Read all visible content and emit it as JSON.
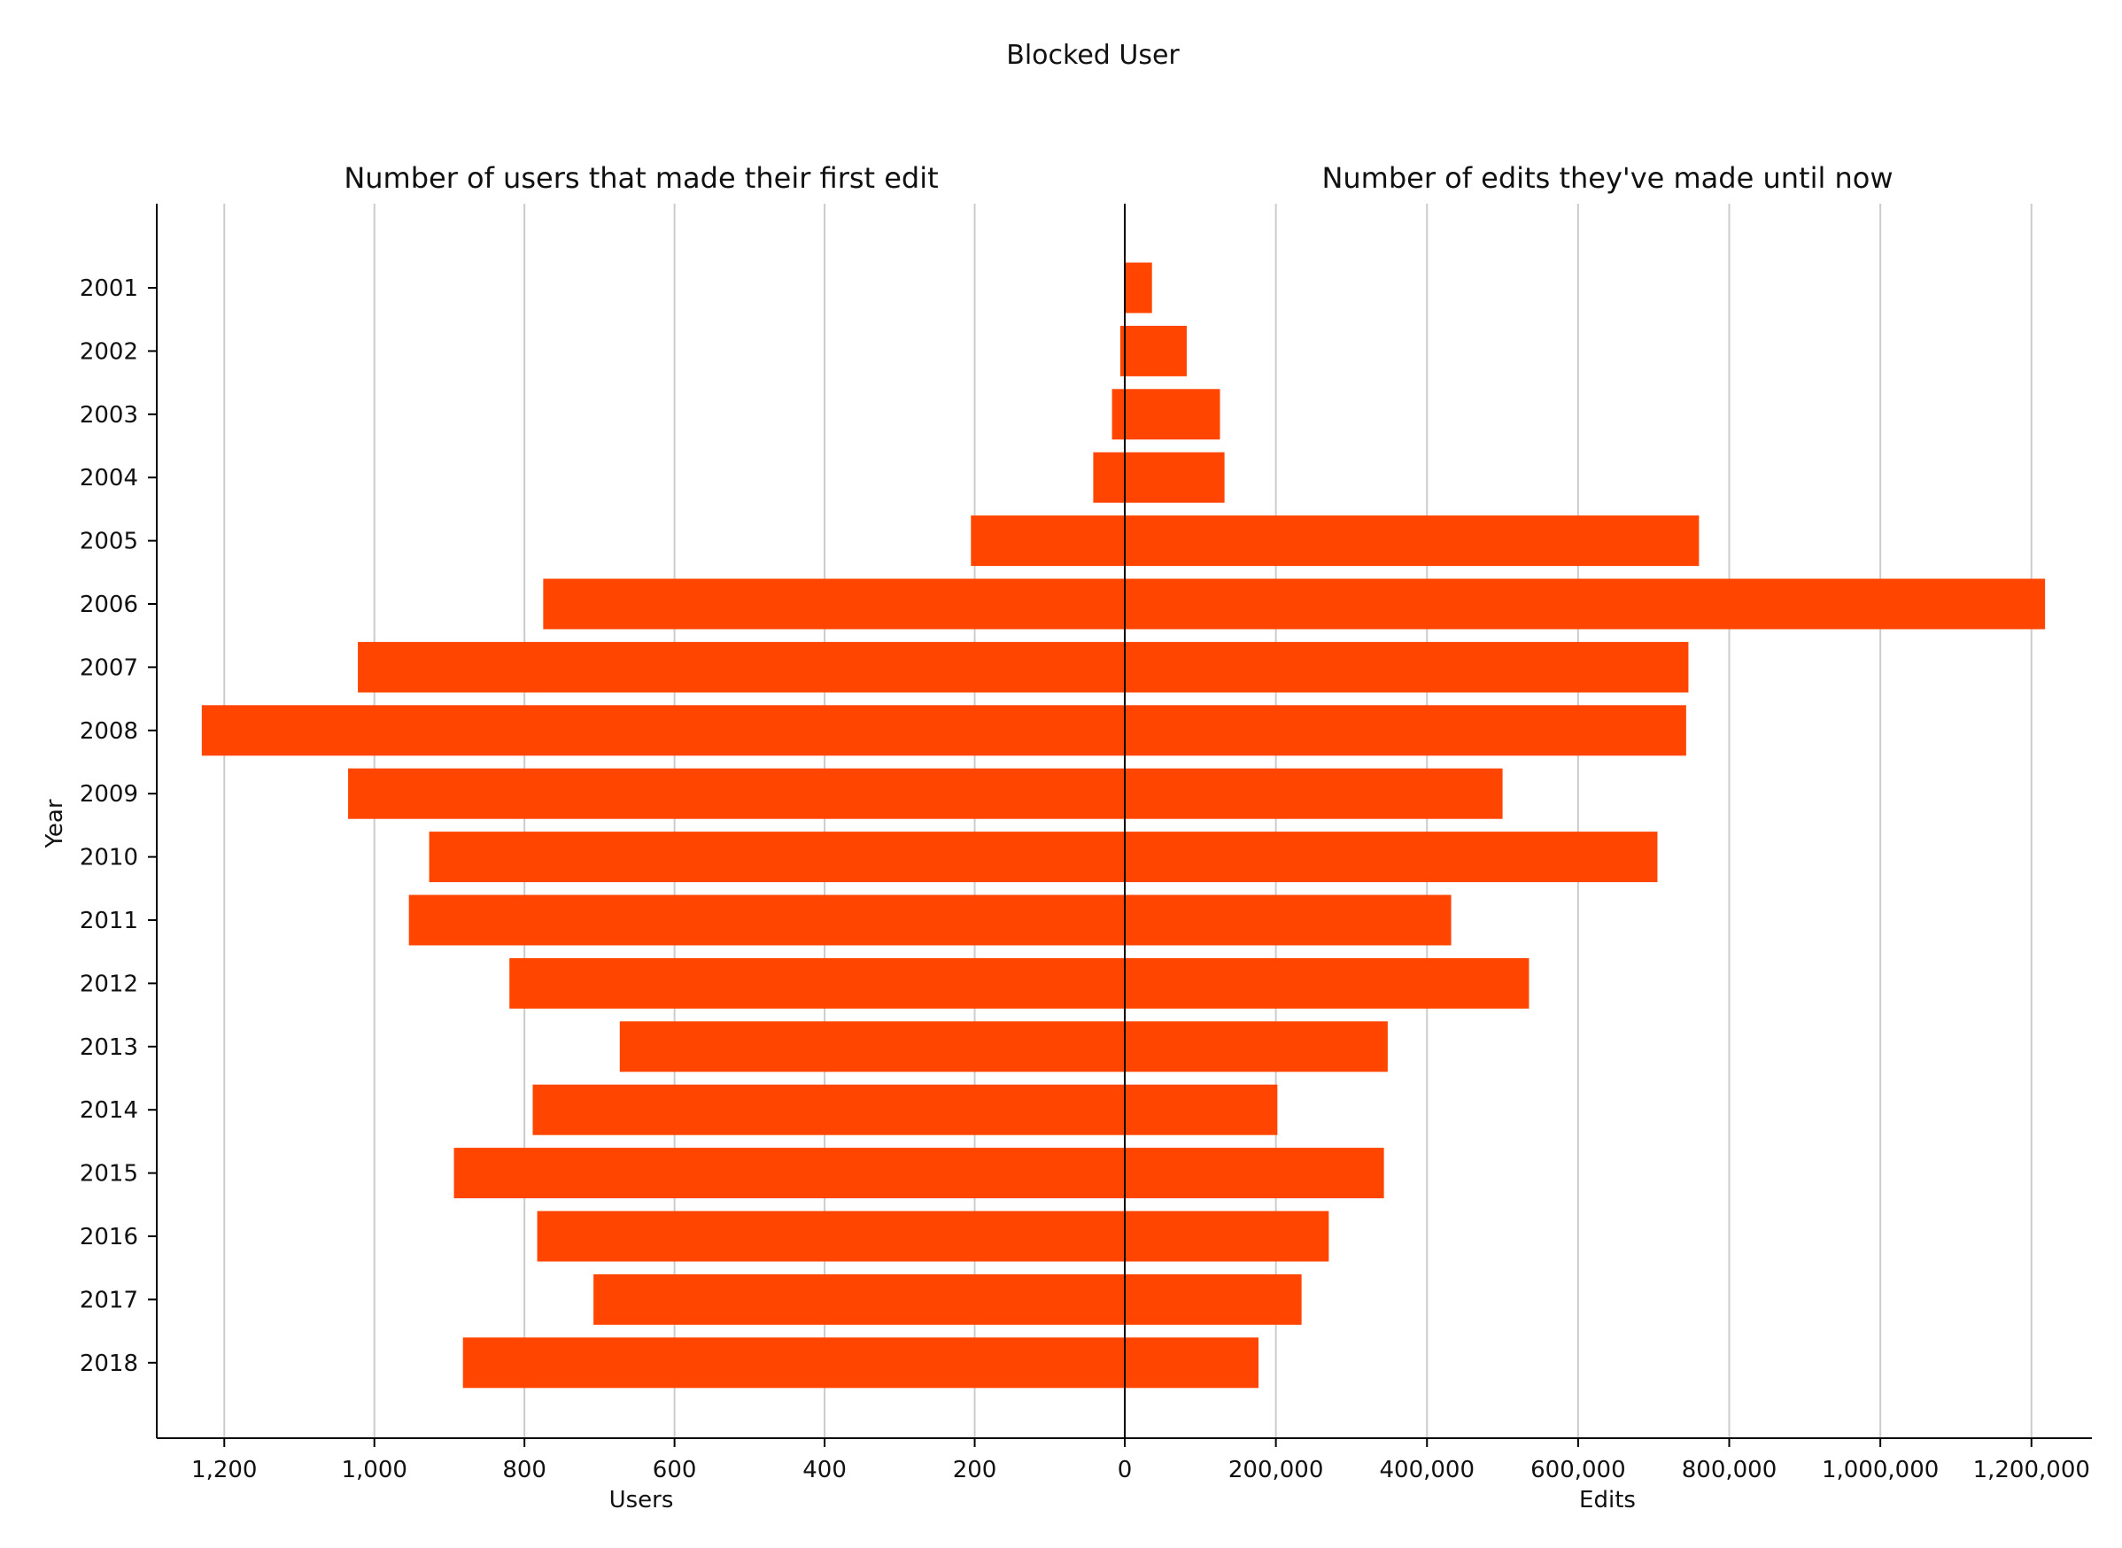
{
  "chart_data": {
    "type": "bar",
    "orientation": "horizontal",
    "title": "Blocked User",
    "ylabel": "Year",
    "categories": [
      "2001",
      "2002",
      "2003",
      "2004",
      "2005",
      "2006",
      "2007",
      "2008",
      "2009",
      "2010",
      "2011",
      "2012",
      "2013",
      "2014",
      "2015",
      "2016",
      "2017",
      "2018"
    ],
    "bar_color": "#FF4500",
    "panels": [
      {
        "name": "users",
        "subtitle": "Number of users that made their first edit",
        "xlabel": "Users",
        "direction": "left",
        "xlim": [
          0,
          1290
        ],
        "ticks": [
          0,
          200,
          400,
          600,
          800,
          1000,
          1200
        ],
        "tick_labels": [
          "0",
          "200",
          "400",
          "600",
          "800",
          "1,000",
          "1,200"
        ],
        "values": [
          1,
          6,
          17,
          42,
          205,
          775,
          1022,
          1230,
          1035,
          927,
          954,
          820,
          673,
          789,
          894,
          783,
          708,
          882
        ]
      },
      {
        "name": "edits",
        "subtitle": "Number of edits they've made until now",
        "xlabel": "Edits",
        "direction": "right",
        "xlim": [
          0,
          1280000
        ],
        "ticks": [
          200000,
          400000,
          600000,
          800000,
          1000000,
          1200000
        ],
        "tick_labels": [
          "200,000",
          "400,000",
          "600,000",
          "800,000",
          "1,000,000",
          "1,200,000"
        ],
        "values": [
          36000,
          82000,
          126000,
          132000,
          760000,
          1218000,
          746000,
          743000,
          500000,
          705000,
          432000,
          535000,
          348000,
          202000,
          343000,
          270000,
          234000,
          177000
        ]
      }
    ]
  }
}
